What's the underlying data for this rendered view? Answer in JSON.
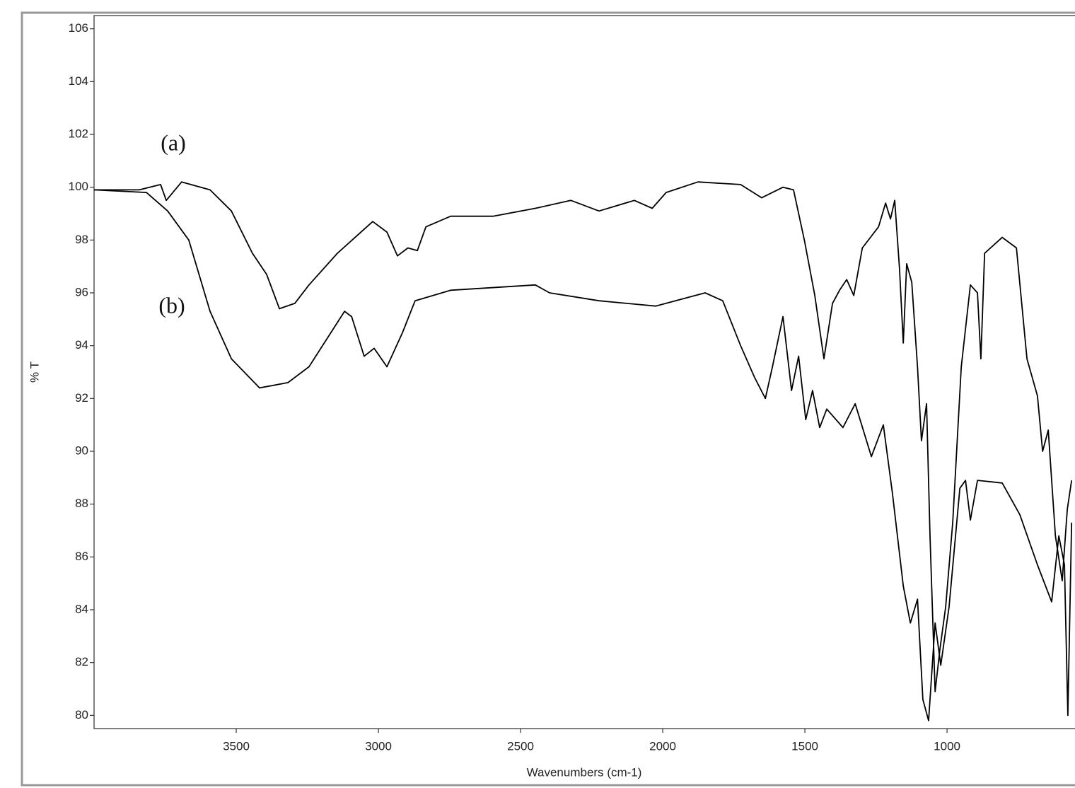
{
  "chart_data": {
    "type": "line",
    "x_label": "Wavenumbers (cm-1)",
    "y_label": "% T",
    "xlim": [
      4000,
      550
    ],
    "ylim": [
      79.5,
      106.5
    ],
    "x_reversed": true,
    "xticks": [
      3500,
      3000,
      2500,
      2000,
      1500,
      1000
    ],
    "yticks": [
      80,
      82,
      84,
      86,
      88,
      90,
      92,
      94,
      96,
      98,
      100,
      102,
      104,
      106
    ],
    "series": [
      {
        "name": "(a)",
        "color": "#000000",
        "x": [
          4000,
          3841,
          3766,
          3746,
          3692,
          3592,
          3517,
          3443,
          3393,
          3348,
          3294,
          3244,
          3144,
          3020,
          2970,
          2933,
          2896,
          2863,
          2833,
          2746,
          2597,
          2448,
          2323,
          2224,
          2100,
          2037,
          1988,
          1876,
          1726,
          1652,
          1577,
          1540,
          1502,
          1465,
          1433,
          1403,
          1378,
          1353,
          1328,
          1298,
          1241,
          1216,
          1199,
          1184,
          1167,
          1154,
          1142,
          1124,
          1104,
          1090,
          1072,
          1060,
          1042,
          1025,
          1005,
          980,
          950,
          918,
          893,
          881,
          868,
          806,
          756,
          719,
          682,
          664,
          644,
          619,
          595,
          577,
          562
        ],
        "values": [
          99.9,
          99.9,
          100.1,
          99.5,
          100.2,
          99.9,
          99.1,
          97.5,
          96.7,
          95.4,
          95.6,
          96.3,
          97.5,
          98.7,
          98.3,
          97.4,
          97.7,
          97.6,
          98.5,
          98.9,
          98.9,
          99.2,
          99.5,
          99.1,
          99.5,
          99.2,
          99.8,
          100.2,
          100.1,
          99.6,
          100.0,
          99.9,
          98.0,
          95.9,
          93.5,
          95.6,
          96.1,
          96.5,
          95.9,
          97.7,
          98.5,
          99.4,
          98.8,
          99.5,
          96.9,
          94.1,
          97.1,
          96.4,
          93.2,
          90.4,
          91.8,
          86.8,
          80.9,
          82.5,
          84.1,
          87.3,
          93.2,
          96.3,
          96.0,
          93.5,
          97.5,
          98.1,
          97.7,
          93.5,
          92.1,
          90.0,
          90.8,
          86.8,
          85.1,
          87.8,
          88.9
        ]
      },
      {
        "name": "(b)",
        "color": "#000000",
        "x": [
          4000,
          3816,
          3741,
          3667,
          3592,
          3517,
          3418,
          3318,
          3244,
          3119,
          3094,
          3050,
          3015,
          2970,
          2915,
          2871,
          2746,
          2448,
          2398,
          2224,
          2025,
          1851,
          1789,
          1726,
          1677,
          1639,
          1614,
          1577,
          1547,
          1522,
          1497,
          1473,
          1448,
          1423,
          1366,
          1323,
          1266,
          1224,
          1192,
          1154,
          1129,
          1104,
          1085,
          1065,
          1042,
          1022,
          993,
          955,
          935,
          918,
          893,
          806,
          744,
          682,
          632,
          607,
          587,
          575,
          562
        ],
        "values": [
          99.9,
          99.8,
          99.1,
          98.0,
          95.3,
          93.5,
          92.4,
          92.6,
          93.2,
          95.3,
          95.1,
          93.6,
          93.9,
          93.2,
          94.5,
          95.7,
          96.1,
          96.3,
          96.0,
          95.7,
          95.5,
          96.0,
          95.7,
          94.0,
          92.8,
          92.0,
          93.2,
          95.1,
          92.3,
          93.6,
          91.2,
          92.3,
          90.9,
          91.6,
          90.9,
          91.8,
          89.8,
          91.0,
          88.4,
          84.9,
          83.5,
          84.4,
          80.6,
          79.8,
          83.5,
          81.9,
          84.1,
          88.6,
          88.9,
          87.4,
          88.9,
          88.8,
          87.6,
          85.7,
          84.3,
          86.8,
          85.7,
          80.0,
          87.3
        ]
      }
    ]
  }
}
